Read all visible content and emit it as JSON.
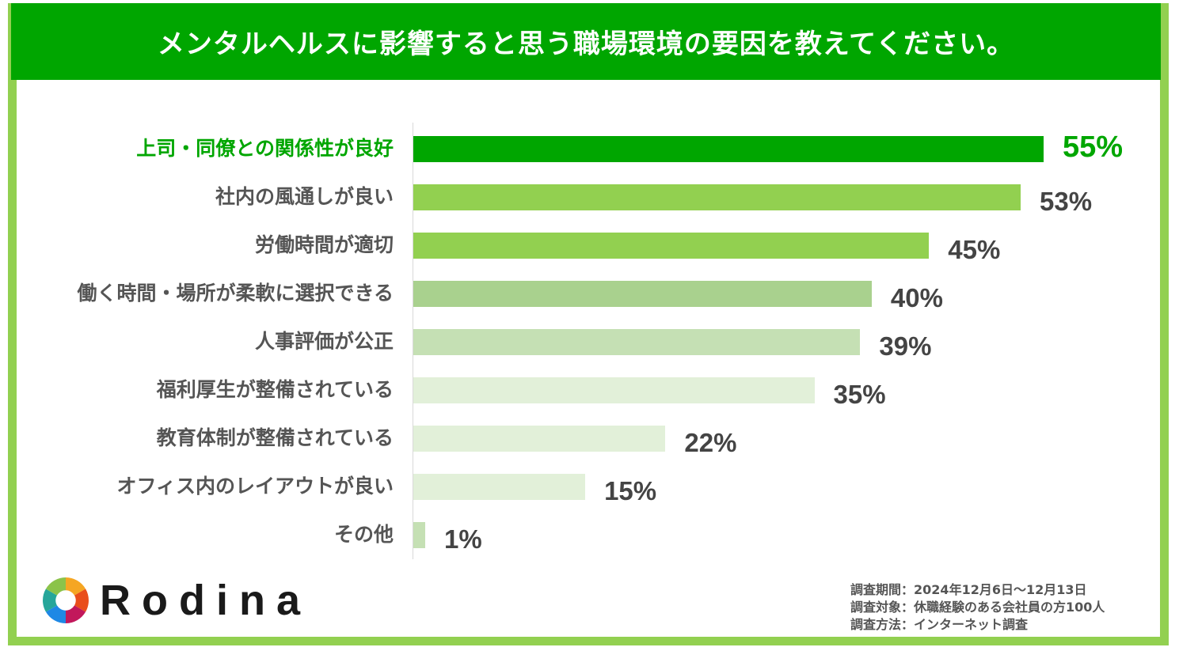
{
  "header": {
    "title": "メンタルヘルスに影響すると思う職場環境の要因を教えてください。"
  },
  "chart_data": {
    "type": "bar",
    "orientation": "horizontal",
    "title": "メンタルヘルスに影響すると思う職場環境の要因を教えてください。",
    "categories": [
      "上司・同僚との関係性が良好",
      "社内の風通しが良い",
      "労働時間が適切",
      "働く時間・場所が柔軟に選択できる",
      "人事評価が公正",
      "福利厚生が整備されている",
      "教育体制が整備されている",
      "オフィス内のレイアウトが良い",
      "その他"
    ],
    "values": [
      55,
      53,
      45,
      40,
      39,
      35,
      22,
      15,
      1
    ],
    "value_labels": [
      "55%",
      "53%",
      "45%",
      "40%",
      "39%",
      "35%",
      "22%",
      "15%",
      "1%"
    ],
    "bar_colors": [
      "#00a600",
      "#92d050",
      "#92d050",
      "#a9d18e",
      "#c5e0b4",
      "#e2f0d9",
      "#e2f0d9",
      "#e2f0d9",
      "#c5e0b4"
    ],
    "highlight_color": "#00a600",
    "xlim": [
      0,
      60
    ],
    "grid": false
  },
  "logo": {
    "name": "Rodina",
    "icon": "aperture-logo-icon"
  },
  "survey": [
    {
      "label": "調査期間",
      "value": "2024年12月6日～12月13日"
    },
    {
      "label": "調査対象",
      "value": "休職経験のある会社員の方100人"
    },
    {
      "label": "調査方法",
      "value": "インターネット調査"
    }
  ]
}
